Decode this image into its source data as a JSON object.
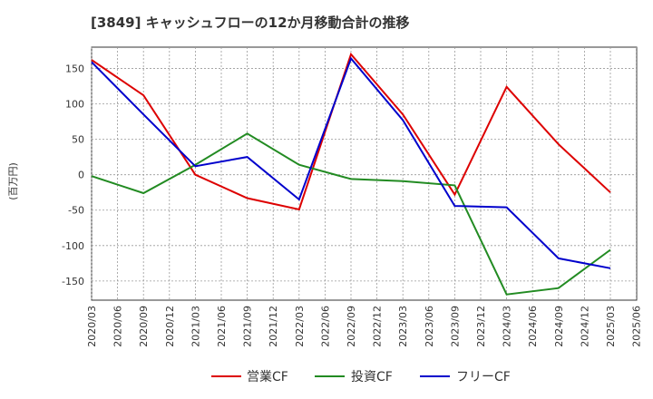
{
  "chart_data": {
    "type": "line",
    "title": "[3849]  キャッシュフローの12か月移動合計の推移",
    "ylabel": "(百万円)",
    "xlabel": "",
    "ylim": [
      -177,
      180
    ],
    "yticks": [
      150,
      100,
      50,
      0,
      -50,
      -100,
      -150
    ],
    "x_tick_labels": [
      "2020/03",
      "2020/06",
      "2020/09",
      "2020/12",
      "2021/03",
      "2021/06",
      "2021/09",
      "2021/12",
      "2022/03",
      "2022/06",
      "2022/09",
      "2022/12",
      "2023/03",
      "2023/06",
      "2023/09",
      "2023/12",
      "2024/03",
      "2024/06",
      "2024/09",
      "2024/12",
      "2025/03",
      "2025/06"
    ],
    "grid": true,
    "legend_position": "bottom",
    "series": [
      {
        "name": "営業CF",
        "color": "#dd0000",
        "points": [
          {
            "x": "2020/03",
            "y": 162
          },
          {
            "x": "2020/09",
            "y": 112
          },
          {
            "x": "2021/03",
            "y": 0
          },
          {
            "x": "2021/09",
            "y": -33
          },
          {
            "x": "2022/03",
            "y": -49
          },
          {
            "x": "2022/09",
            "y": 170
          },
          {
            "x": "2023/03",
            "y": 85
          },
          {
            "x": "2023/09",
            "y": -28
          },
          {
            "x": "2024/03",
            "y": 124
          },
          {
            "x": "2024/09",
            "y": 43
          },
          {
            "x": "2025/03",
            "y": -25
          }
        ]
      },
      {
        "name": "投資CF",
        "color": "#228b22",
        "points": [
          {
            "x": "2020/03",
            "y": -2
          },
          {
            "x": "2020/09",
            "y": -26
          },
          {
            "x": "2021/03",
            "y": 14
          },
          {
            "x": "2021/09",
            "y": 58
          },
          {
            "x": "2022/03",
            "y": 14
          },
          {
            "x": "2022/09",
            "y": -6
          },
          {
            "x": "2023/03",
            "y": -9
          },
          {
            "x": "2023/09",
            "y": -15
          },
          {
            "x": "2024/03",
            "y": -169
          },
          {
            "x": "2024/09",
            "y": -160
          },
          {
            "x": "2025/03",
            "y": -106
          }
        ]
      },
      {
        "name": "フリーCF",
        "color": "#0000cc",
        "points": [
          {
            "x": "2020/03",
            "y": 159
          },
          {
            "x": "2020/09",
            "y": 85
          },
          {
            "x": "2021/03",
            "y": 12
          },
          {
            "x": "2021/09",
            "y": 25
          },
          {
            "x": "2022/03",
            "y": -35
          },
          {
            "x": "2022/09",
            "y": 164
          },
          {
            "x": "2023/03",
            "y": 77
          },
          {
            "x": "2023/09",
            "y": -44
          },
          {
            "x": "2024/03",
            "y": -46
          },
          {
            "x": "2024/09",
            "y": -118
          },
          {
            "x": "2025/03",
            "y": -132
          }
        ]
      }
    ]
  }
}
